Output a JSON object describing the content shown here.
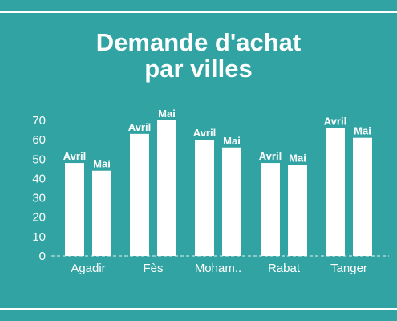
{
  "title": {
    "line1": "Demande d'achat",
    "line2": "par villes"
  },
  "colors": {
    "background": "#32a3a3",
    "bar": "#ffffff",
    "text": "#ffffff"
  },
  "chart_data": {
    "type": "bar",
    "title": "Demande d'achat par villes",
    "xlabel": "",
    "ylabel": "",
    "categories": [
      "Agadir",
      "Fès",
      "Moham..",
      "Rabat",
      "Tanger"
    ],
    "series": [
      {
        "name": "Avril",
        "values": [
          48,
          63,
          60,
          48,
          66
        ]
      },
      {
        "name": "Mai",
        "values": [
          44,
          70,
          56,
          47,
          61
        ]
      }
    ],
    "ylim": [
      0,
      70
    ],
    "yticks": [
      0,
      10,
      20,
      30,
      40,
      50,
      60,
      70
    ],
    "grid": false,
    "legend": "none"
  }
}
